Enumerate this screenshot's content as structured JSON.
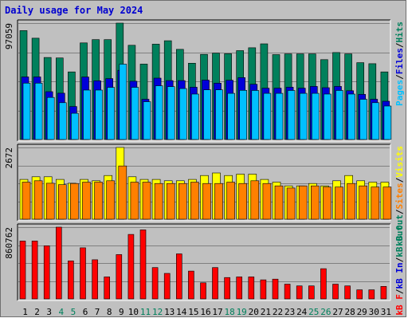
{
  "chart_data": {
    "type": "bar",
    "title": "Daily usage for May 2024",
    "categories": [
      "1",
      "2",
      "3",
      "4",
      "5",
      "6",
      "7",
      "8",
      "9",
      "10",
      "11",
      "12",
      "13",
      "14",
      "15",
      "16",
      "17",
      "18",
      "19",
      "20",
      "21",
      "22",
      "23",
      "24",
      "25",
      "26",
      "27",
      "28",
      "29",
      "30",
      "31"
    ],
    "weekend_days": [
      "4",
      "5",
      "11",
      "12",
      "18",
      "19",
      "25",
      "26"
    ],
    "panels": [
      {
        "id": "requests",
        "max_label": "97059",
        "ylim": [
          0,
          97059
        ],
        "series": [
          {
            "name": "Hits",
            "color": "#00805c",
            "values": [
              90800,
              84500,
              68400,
              68000,
              56400,
              80600,
              83300,
              83300,
              97059,
              78600,
              62900,
              79500,
              82400,
              75200,
              63600,
              71000,
              72000,
              71500,
              74100,
              76500,
              79800,
              70800,
              71400,
              71400,
              71400,
              66600,
              72500,
              71400,
              64100,
              63200,
              56400
            ]
          },
          {
            "name": "Files",
            "color": "#0000d8",
            "values": [
              52200,
              52200,
              39900,
              38600,
              27500,
              52100,
              49000,
              50800,
              57700,
              48600,
              33600,
              51200,
              49100,
              49100,
              43600,
              49500,
              47000,
              49400,
              51600,
              46100,
              42800,
              42800,
              43600,
              42800,
              44300,
              43200,
              44300,
              40700,
              37600,
              33600,
              31900
            ]
          },
          {
            "name": "Pages",
            "color": "#00c0ff",
            "values": [
              47000,
              47000,
              35100,
              30700,
              21900,
              41200,
              41200,
              43500,
              62800,
              43500,
              31500,
              44800,
              44100,
              42500,
              37900,
              41400,
              41400,
              38500,
              41000,
              40900,
              38500,
              38500,
              40900,
              38500,
              38500,
              37900,
              40900,
              37900,
              33500,
              30700,
              27900
            ]
          }
        ]
      },
      {
        "id": "visits",
        "max_label": "2672",
        "ylim": [
          0,
          2672
        ],
        "series": [
          {
            "name": "Visits",
            "color": "#ffff00",
            "values": [
              1480,
              1578,
              1578,
              1480,
              1340,
              1480,
              1431,
              1627,
              2672,
              1578,
              1480,
              1480,
              1431,
              1431,
              1480,
              1627,
              1723,
              1627,
              1678,
              1678,
              1480,
              1382,
              1240,
              1240,
              1331,
              1240,
              1431,
              1627,
              1431,
              1382,
              1382
            ]
          },
          {
            "name": "Sites",
            "color": "#ff8000",
            "values": [
              1382,
              1431,
              1340,
              1285,
              1331,
              1382,
              1382,
              1431,
              1982,
              1382,
              1382,
              1331,
              1331,
              1331,
              1382,
              1331,
              1331,
              1382,
              1331,
              1431,
              1331,
              1240,
              1160,
              1240,
              1240,
              1200,
              1200,
              1331,
              1240,
              1200,
              1200
            ]
          }
        ]
      },
      {
        "id": "kbytes",
        "max_label": "860762",
        "ylim": [
          0,
          860762
        ],
        "series": [
          {
            "name": "kB F",
            "color": "#ff0000",
            "values": [
              694000,
              694000,
              637000,
              860762,
              456000,
              613000,
              470000,
              264000,
              532000,
              774000,
              828000,
              376000,
              306000,
              540000,
              334000,
              193000,
              376000,
              256000,
              264000,
              264000,
              229000,
              237000,
              177000,
              156000,
              156000,
              362000,
              177000,
              156000,
              109000,
              109000,
              150000
            ]
          }
        ]
      }
    ],
    "right_legends": [
      {
        "parts": [
          {
            "text": "Pages",
            "color": "#00c0ff"
          },
          {
            "text": "/",
            "color": "#000000"
          },
          {
            "text": "Files",
            "color": "#0000d8"
          },
          {
            "text": "/",
            "color": "#000000"
          },
          {
            "text": "Hits",
            "color": "#00805c"
          }
        ]
      },
      {
        "parts": [
          {
            "text": "kB Out",
            "color": "#00805c"
          },
          {
            "text": "/",
            "color": "#000000"
          },
          {
            "text": "Sites",
            "color": "#ff8000"
          },
          {
            "text": "/",
            "color": "#000000"
          },
          {
            "text": "Visits",
            "color": "#ffff00"
          }
        ]
      },
      {
        "parts": [
          {
            "text": "kB F",
            "color": "#ff0000"
          },
          {
            "text": "/",
            "color": "#000000"
          },
          {
            "text": "kB In",
            "color": "#0000d8"
          },
          {
            "text": "/",
            "color": "#000000"
          },
          {
            "text": "kB Out",
            "color": "#00805c"
          }
        ]
      }
    ],
    "colors": {
      "title": "#0000d0",
      "weekday_label": "#000000",
      "weekend_label": "#00805c",
      "background": "#c0c0c0",
      "panel": "#c0c0c0",
      "grid": "#808080"
    }
  }
}
